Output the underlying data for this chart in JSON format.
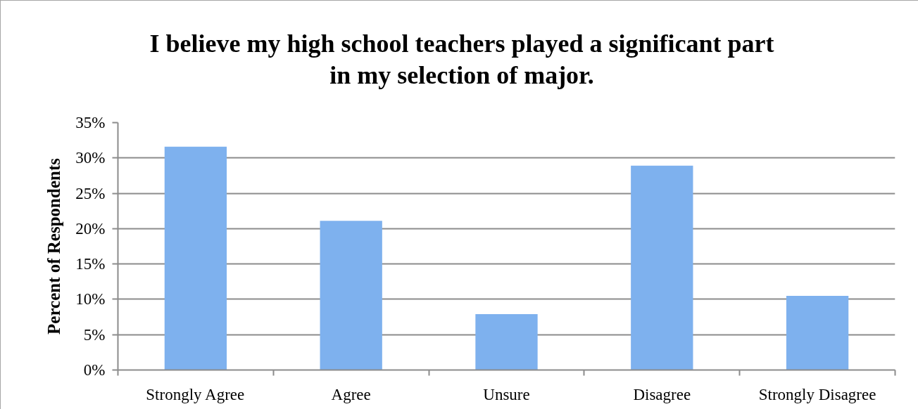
{
  "chart_data": {
    "type": "bar",
    "title": "I believe my high school teachers played a significant part in my selection of major.",
    "ylabel": "Percent of Respondents",
    "categories": [
      "Strongly Agree",
      "Agree",
      "Unsure",
      "Disagree",
      "Strongly Disagree"
    ],
    "values": [
      31.6,
      21.1,
      7.9,
      28.9,
      10.5
    ],
    "color": "#7eb1ee",
    "ylim": [
      0,
      35
    ],
    "yticks": [
      {
        "value": 0,
        "label": "0%"
      },
      {
        "value": 5,
        "label": "5%"
      },
      {
        "value": 10,
        "label": "10%"
      },
      {
        "value": 15,
        "label": "15%"
      },
      {
        "value": 20,
        "label": "20%"
      },
      {
        "value": 25,
        "label": "25%"
      },
      {
        "value": 30,
        "label": "30%"
      },
      {
        "value": 35,
        "label": "35%"
      }
    ],
    "grid": "y"
  }
}
